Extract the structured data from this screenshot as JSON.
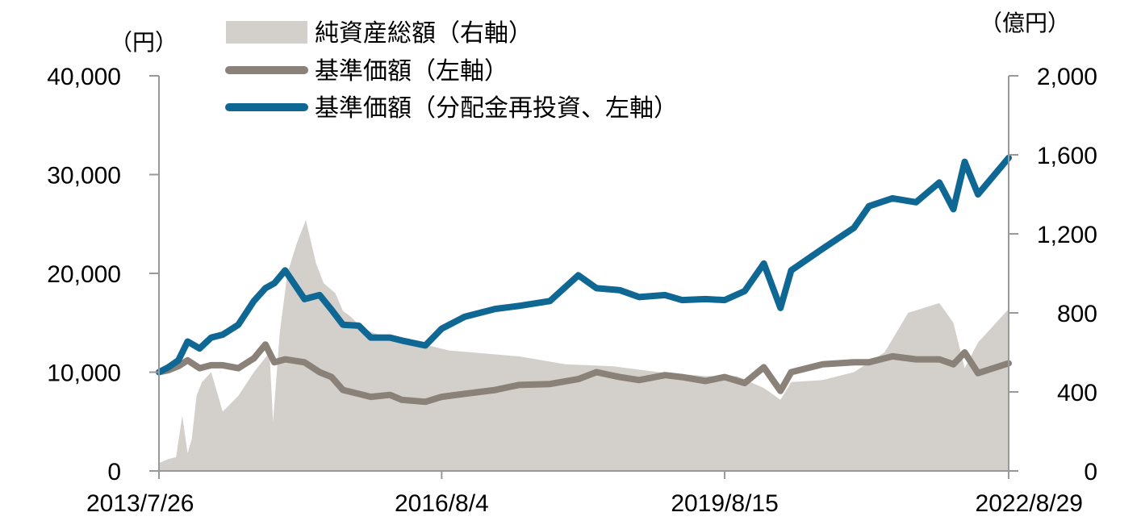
{
  "chart_data": {
    "type": "line",
    "left_axis": {
      "unit": "（円）",
      "ylim": [
        0,
        40000
      ],
      "ticks": [
        "0",
        "10,000",
        "20,000",
        "30,000",
        "40,000"
      ]
    },
    "right_axis": {
      "unit": "（億円）",
      "ylim": [
        0,
        2000
      ],
      "ticks": [
        "0",
        "400",
        "800",
        "1,200",
        "1,600",
        "2,000"
      ]
    },
    "x_axis": {
      "range": [
        "2013/7/26",
        "2022/8/29"
      ],
      "ticks": [
        "2013/7/26",
        "2016/8/4",
        "2019/8/15",
        "2022/8/29"
      ]
    },
    "legend": {
      "placement": "top-center",
      "items": [
        {
          "key": "aum",
          "label": "純資産総額（右軸）",
          "kind": "area",
          "color": "#d3d0cc"
        },
        {
          "key": "nav",
          "label": "基準価額（左軸）",
          "kind": "line",
          "color": "#8a8178"
        },
        {
          "key": "nav_reinvested",
          "label": "基準価額（分配金再投資、左軸）",
          "kind": "line",
          "color": "#0f6794"
        }
      ]
    },
    "series": [
      {
        "key": "aum",
        "name": "純資産総額（右軸）",
        "axis": "right",
        "x": [
          "2013-07-26",
          "2013-09-01",
          "2013-10-01",
          "2013-10-25",
          "2013-11-15",
          "2013-12-01",
          "2013-12-20",
          "2014-01-10",
          "2014-02-15",
          "2014-04-01",
          "2014-06-01",
          "2014-08-01",
          "2014-10-01",
          "2014-10-15",
          "2014-11-10",
          "2014-12-10",
          "2015-01-15",
          "2015-02-20",
          "2015-04-01",
          "2015-05-01",
          "2015-06-15",
          "2015-07-15",
          "2015-08-15",
          "2015-10-01",
          "2015-12-01",
          "2016-03-01",
          "2016-06-01",
          "2016-09-01",
          "2016-12-01",
          "2017-06-01",
          "2017-12-01",
          "2018-06-01",
          "2018-12-01",
          "2019-06-01",
          "2019-10-01",
          "2020-01-15",
          "2020-03-20",
          "2020-05-01",
          "2020-09-01",
          "2021-01-01",
          "2021-05-01",
          "2021-08-01",
          "2021-12-01",
          "2022-01-25",
          "2022-03-10",
          "2022-05-01",
          "2022-08-29"
        ],
        "values": [
          40,
          60,
          70,
          280,
          90,
          160,
          380,
          450,
          500,
          300,
          380,
          500,
          600,
          250,
          700,
          1000,
          1150,
          1270,
          1050,
          950,
          900,
          810,
          780,
          720,
          690,
          670,
          640,
          610,
          600,
          580,
          540,
          530,
          500,
          480,
          480,
          420,
          360,
          450,
          460,
          500,
          600,
          800,
          850,
          750,
          520,
          650,
          820
        ]
      },
      {
        "key": "nav",
        "name": "基準価額（左軸）",
        "axis": "left",
        "x": [
          "2013-07-26",
          "2013-09-01",
          "2013-10-10",
          "2013-11-15",
          "2014-01-01",
          "2014-02-15",
          "2014-04-01",
          "2014-06-01",
          "2014-08-01",
          "2014-09-15",
          "2014-10-20",
          "2014-12-01",
          "2015-02-15",
          "2015-04-15",
          "2015-06-01",
          "2015-07-15",
          "2015-09-15",
          "2015-11-01",
          "2016-01-15",
          "2016-03-01",
          "2016-06-01",
          "2016-08-04",
          "2016-11-01",
          "2017-03-01",
          "2017-06-01",
          "2017-10-01",
          "2018-01-20",
          "2018-04-01",
          "2018-07-01",
          "2018-09-15",
          "2018-12-25",
          "2019-03-01",
          "2019-06-01",
          "2019-08-15",
          "2019-11-01",
          "2020-01-15",
          "2020-03-20",
          "2020-05-01",
          "2020-09-01",
          "2021-01-01",
          "2021-03-01",
          "2021-06-01",
          "2021-09-01",
          "2021-12-01",
          "2022-01-25",
          "2022-03-10",
          "2022-05-01",
          "2022-08-29"
        ],
        "values": [
          10000,
          10200,
          10600,
          11200,
          10400,
          10700,
          10700,
          10400,
          11400,
          12800,
          11000,
          11300,
          11000,
          10000,
          9500,
          8200,
          7800,
          7500,
          7700,
          7200,
          7000,
          7500,
          7800,
          8200,
          8700,
          8800,
          9300,
          10000,
          9500,
          9200,
          9700,
          9500,
          9100,
          9500,
          8900,
          10500,
          8100,
          10000,
          10800,
          11000,
          11000,
          11600,
          11300,
          11300,
          10800,
          12000,
          9900,
          10900
        ]
      },
      {
        "key": "nav_reinvested",
        "name": "基準価額（分配金再投資、左軸）",
        "axis": "left",
        "x": [
          "2013-07-26",
          "2013-09-01",
          "2013-10-10",
          "2013-11-15",
          "2014-01-01",
          "2014-02-15",
          "2014-04-01",
          "2014-06-01",
          "2014-08-01",
          "2014-09-15",
          "2014-10-20",
          "2014-12-01",
          "2015-02-15",
          "2015-04-15",
          "2015-06-01",
          "2015-07-15",
          "2015-09-15",
          "2015-11-01",
          "2016-01-15",
          "2016-03-01",
          "2016-06-01",
          "2016-08-04",
          "2016-11-01",
          "2017-03-01",
          "2017-06-01",
          "2017-10-01",
          "2018-01-20",
          "2018-04-01",
          "2018-07-01",
          "2018-09-15",
          "2018-12-25",
          "2019-03-01",
          "2019-06-01",
          "2019-08-15",
          "2019-11-01",
          "2020-01-15",
          "2020-03-20",
          "2020-05-01",
          "2020-09-01",
          "2021-01-01",
          "2021-03-01",
          "2021-06-01",
          "2021-09-01",
          "2021-12-01",
          "2022-01-25",
          "2022-03-10",
          "2022-05-01",
          "2022-08-29"
        ],
        "values": [
          10000,
          10500,
          11200,
          13100,
          12400,
          13500,
          13800,
          14800,
          17200,
          18500,
          19000,
          20300,
          17400,
          17800,
          16300,
          14800,
          14700,
          13500,
          13500,
          13200,
          12700,
          14400,
          15600,
          16400,
          16700,
          17200,
          19800,
          18500,
          18300,
          17600,
          17800,
          17300,
          17400,
          17300,
          18200,
          21000,
          16500,
          20300,
          22500,
          24600,
          26800,
          27600,
          27200,
          29200,
          26500,
          31300,
          28000,
          31700
        ]
      }
    ]
  }
}
